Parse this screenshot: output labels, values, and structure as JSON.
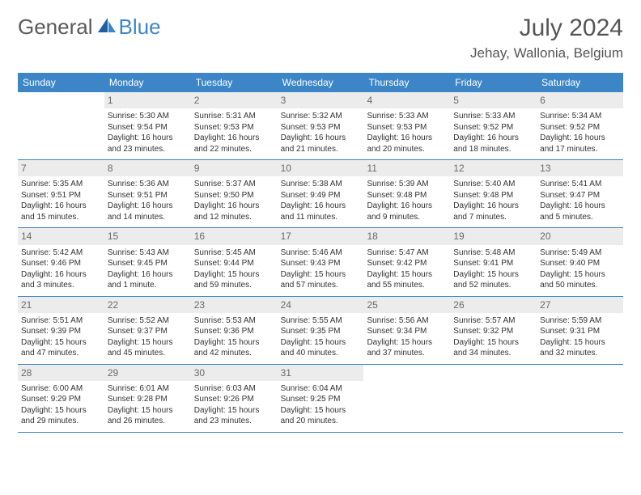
{
  "brand": {
    "part1": "General",
    "part2": "Blue"
  },
  "title": "July 2024",
  "location": "Jehay, Wallonia, Belgium",
  "colors": {
    "header_bg": "#3c86c7",
    "header_text": "#ffffff",
    "daynum_bg": "#ececec",
    "daynum_text": "#6a6a6a",
    "rule": "#3c86c7",
    "body_text": "#333333",
    "title_text": "#555555"
  },
  "day_labels": [
    "Sunday",
    "Monday",
    "Tuesday",
    "Wednesday",
    "Thursday",
    "Friday",
    "Saturday"
  ],
  "weeks": [
    [
      {
        "day": "",
        "sunrise": "",
        "sunset": "",
        "daylight": ""
      },
      {
        "day": "1",
        "sunrise": "Sunrise: 5:30 AM",
        "sunset": "Sunset: 9:54 PM",
        "daylight": "Daylight: 16 hours and 23 minutes."
      },
      {
        "day": "2",
        "sunrise": "Sunrise: 5:31 AM",
        "sunset": "Sunset: 9:53 PM",
        "daylight": "Daylight: 16 hours and 22 minutes."
      },
      {
        "day": "3",
        "sunrise": "Sunrise: 5:32 AM",
        "sunset": "Sunset: 9:53 PM",
        "daylight": "Daylight: 16 hours and 21 minutes."
      },
      {
        "day": "4",
        "sunrise": "Sunrise: 5:33 AM",
        "sunset": "Sunset: 9:53 PM",
        "daylight": "Daylight: 16 hours and 20 minutes."
      },
      {
        "day": "5",
        "sunrise": "Sunrise: 5:33 AM",
        "sunset": "Sunset: 9:52 PM",
        "daylight": "Daylight: 16 hours and 18 minutes."
      },
      {
        "day": "6",
        "sunrise": "Sunrise: 5:34 AM",
        "sunset": "Sunset: 9:52 PM",
        "daylight": "Daylight: 16 hours and 17 minutes."
      }
    ],
    [
      {
        "day": "7",
        "sunrise": "Sunrise: 5:35 AM",
        "sunset": "Sunset: 9:51 PM",
        "daylight": "Daylight: 16 hours and 15 minutes."
      },
      {
        "day": "8",
        "sunrise": "Sunrise: 5:36 AM",
        "sunset": "Sunset: 9:51 PM",
        "daylight": "Daylight: 16 hours and 14 minutes."
      },
      {
        "day": "9",
        "sunrise": "Sunrise: 5:37 AM",
        "sunset": "Sunset: 9:50 PM",
        "daylight": "Daylight: 16 hours and 12 minutes."
      },
      {
        "day": "10",
        "sunrise": "Sunrise: 5:38 AM",
        "sunset": "Sunset: 9:49 PM",
        "daylight": "Daylight: 16 hours and 11 minutes."
      },
      {
        "day": "11",
        "sunrise": "Sunrise: 5:39 AM",
        "sunset": "Sunset: 9:48 PM",
        "daylight": "Daylight: 16 hours and 9 minutes."
      },
      {
        "day": "12",
        "sunrise": "Sunrise: 5:40 AM",
        "sunset": "Sunset: 9:48 PM",
        "daylight": "Daylight: 16 hours and 7 minutes."
      },
      {
        "day": "13",
        "sunrise": "Sunrise: 5:41 AM",
        "sunset": "Sunset: 9:47 PM",
        "daylight": "Daylight: 16 hours and 5 minutes."
      }
    ],
    [
      {
        "day": "14",
        "sunrise": "Sunrise: 5:42 AM",
        "sunset": "Sunset: 9:46 PM",
        "daylight": "Daylight: 16 hours and 3 minutes."
      },
      {
        "day": "15",
        "sunrise": "Sunrise: 5:43 AM",
        "sunset": "Sunset: 9:45 PM",
        "daylight": "Daylight: 16 hours and 1 minute."
      },
      {
        "day": "16",
        "sunrise": "Sunrise: 5:45 AM",
        "sunset": "Sunset: 9:44 PM",
        "daylight": "Daylight: 15 hours and 59 minutes."
      },
      {
        "day": "17",
        "sunrise": "Sunrise: 5:46 AM",
        "sunset": "Sunset: 9:43 PM",
        "daylight": "Daylight: 15 hours and 57 minutes."
      },
      {
        "day": "18",
        "sunrise": "Sunrise: 5:47 AM",
        "sunset": "Sunset: 9:42 PM",
        "daylight": "Daylight: 15 hours and 55 minutes."
      },
      {
        "day": "19",
        "sunrise": "Sunrise: 5:48 AM",
        "sunset": "Sunset: 9:41 PM",
        "daylight": "Daylight: 15 hours and 52 minutes."
      },
      {
        "day": "20",
        "sunrise": "Sunrise: 5:49 AM",
        "sunset": "Sunset: 9:40 PM",
        "daylight": "Daylight: 15 hours and 50 minutes."
      }
    ],
    [
      {
        "day": "21",
        "sunrise": "Sunrise: 5:51 AM",
        "sunset": "Sunset: 9:39 PM",
        "daylight": "Daylight: 15 hours and 47 minutes."
      },
      {
        "day": "22",
        "sunrise": "Sunrise: 5:52 AM",
        "sunset": "Sunset: 9:37 PM",
        "daylight": "Daylight: 15 hours and 45 minutes."
      },
      {
        "day": "23",
        "sunrise": "Sunrise: 5:53 AM",
        "sunset": "Sunset: 9:36 PM",
        "daylight": "Daylight: 15 hours and 42 minutes."
      },
      {
        "day": "24",
        "sunrise": "Sunrise: 5:55 AM",
        "sunset": "Sunset: 9:35 PM",
        "daylight": "Daylight: 15 hours and 40 minutes."
      },
      {
        "day": "25",
        "sunrise": "Sunrise: 5:56 AM",
        "sunset": "Sunset: 9:34 PM",
        "daylight": "Daylight: 15 hours and 37 minutes."
      },
      {
        "day": "26",
        "sunrise": "Sunrise: 5:57 AM",
        "sunset": "Sunset: 9:32 PM",
        "daylight": "Daylight: 15 hours and 34 minutes."
      },
      {
        "day": "27",
        "sunrise": "Sunrise: 5:59 AM",
        "sunset": "Sunset: 9:31 PM",
        "daylight": "Daylight: 15 hours and 32 minutes."
      }
    ],
    [
      {
        "day": "28",
        "sunrise": "Sunrise: 6:00 AM",
        "sunset": "Sunset: 9:29 PM",
        "daylight": "Daylight: 15 hours and 29 minutes."
      },
      {
        "day": "29",
        "sunrise": "Sunrise: 6:01 AM",
        "sunset": "Sunset: 9:28 PM",
        "daylight": "Daylight: 15 hours and 26 minutes."
      },
      {
        "day": "30",
        "sunrise": "Sunrise: 6:03 AM",
        "sunset": "Sunset: 9:26 PM",
        "daylight": "Daylight: 15 hours and 23 minutes."
      },
      {
        "day": "31",
        "sunrise": "Sunrise: 6:04 AM",
        "sunset": "Sunset: 9:25 PM",
        "daylight": "Daylight: 15 hours and 20 minutes."
      },
      {
        "day": "",
        "sunrise": "",
        "sunset": "",
        "daylight": ""
      },
      {
        "day": "",
        "sunrise": "",
        "sunset": "",
        "daylight": ""
      },
      {
        "day": "",
        "sunrise": "",
        "sunset": "",
        "daylight": ""
      }
    ]
  ]
}
